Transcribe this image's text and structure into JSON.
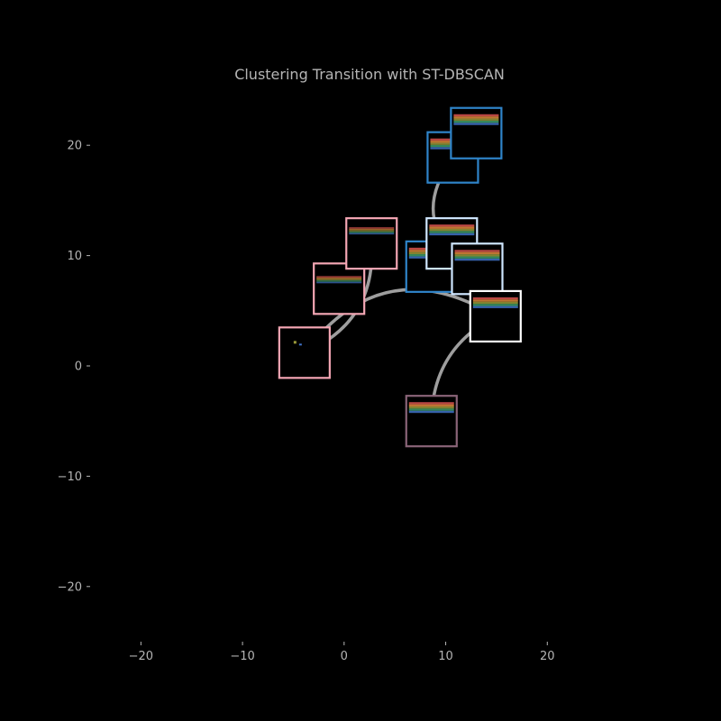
{
  "chart_data": {
    "type": "scatter",
    "title": "Clustering Transition with ST-DBSCAN",
    "xlabel": "",
    "ylabel": "",
    "xlim": [
      -25,
      30
    ],
    "ylim": [
      -25,
      25
    ],
    "x_ticks": [
      -20,
      -10,
      0,
      10,
      20
    ],
    "y_ticks": [
      -20,
      -10,
      0,
      10,
      20
    ],
    "x_tick_labels": [
      "−20",
      "−10",
      "0",
      "10",
      "20"
    ],
    "y_tick_labels": [
      "−20",
      "−10",
      "0",
      "10",
      "20"
    ],
    "grid": false,
    "background_color": "#000000",
    "text_color": "#b5b5b5",
    "edge_color": "#9e9e9e",
    "nodes": [
      {
        "id": "n1",
        "x": -3.9,
        "y": 1.2,
        "border": "#f4a6b4"
      },
      {
        "id": "n2",
        "x": -0.5,
        "y": 7.0,
        "border": "#f4a6b4"
      },
      {
        "id": "n3",
        "x": 2.7,
        "y": 11.1,
        "border": "#f4a6b4"
      },
      {
        "id": "n4",
        "x": 8.6,
        "y": 9.0,
        "border": "#2f84c9"
      },
      {
        "id": "n5",
        "x": 10.6,
        "y": 11.1,
        "border": "#cfe6ff"
      },
      {
        "id": "n6",
        "x": 13.1,
        "y": 8.8,
        "border": "#cfe6ff"
      },
      {
        "id": "n7",
        "x": 14.9,
        "y": 4.5,
        "border": "#ffffff"
      },
      {
        "id": "n8",
        "x": 10.7,
        "y": 18.9,
        "border": "#2f84c9"
      },
      {
        "id": "n9",
        "x": 13.0,
        "y": 21.1,
        "border": "#2f84c9"
      },
      {
        "id": "n10",
        "x": 8.6,
        "y": -5.0,
        "border": "#8a6478"
      }
    ],
    "edges": [
      {
        "from": "n1",
        "to": "n3"
      },
      {
        "from": "n1",
        "to": "n7"
      },
      {
        "from": "n7",
        "to": "n10"
      },
      {
        "from": "n8",
        "to": "n6"
      }
    ]
  }
}
